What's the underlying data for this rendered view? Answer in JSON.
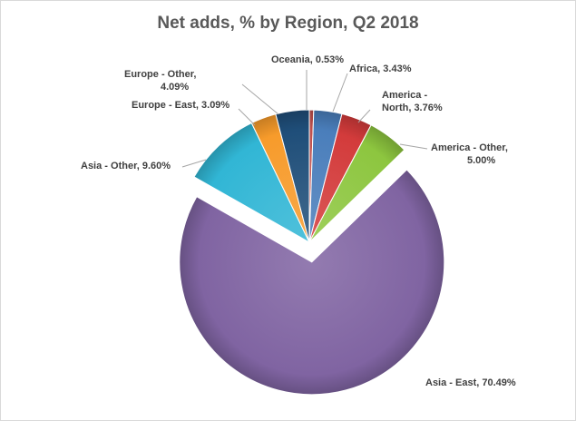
{
  "chart_data": {
    "type": "pie",
    "title": "Net adds, % by Region, Q2 2018",
    "legend": "none",
    "exploded": "Asia - East",
    "slices": [
      {
        "name": "Oceania",
        "value": 0.53,
        "label_lines": [
          "Oceania, 0.53%"
        ],
        "color": "#c0504d"
      },
      {
        "name": "Africa",
        "value": 3.43,
        "label_lines": [
          "Africa, 3.43%"
        ],
        "color": "#4a7ebb"
      },
      {
        "name": "America - North",
        "value": 3.76,
        "label_lines": [
          "America -",
          "North, 3.76%"
        ],
        "color": "#d33b3b"
      },
      {
        "name": "America - Other",
        "value": 5.0,
        "label_lines": [
          "America - Other,",
          "5.00%"
        ],
        "color": "#8dc63f"
      },
      {
        "name": "Asia - East",
        "value": 70.49,
        "label_lines": [
          "Asia - East, 70.49%"
        ],
        "color": "#8064a2"
      },
      {
        "name": "Asia - Other",
        "value": 9.6,
        "label_lines": [
          "Asia - Other, 9.60%"
        ],
        "color": "#31b6d5"
      },
      {
        "name": "Europe - East",
        "value": 3.09,
        "label_lines": [
          "Europe - East, 3.09%"
        ],
        "color": "#f79b2b"
      },
      {
        "name": "Europe - Other",
        "value": 4.09,
        "label_lines": [
          "Europe - Other,",
          "4.09%"
        ],
        "color": "#1f4e79"
      }
    ]
  }
}
